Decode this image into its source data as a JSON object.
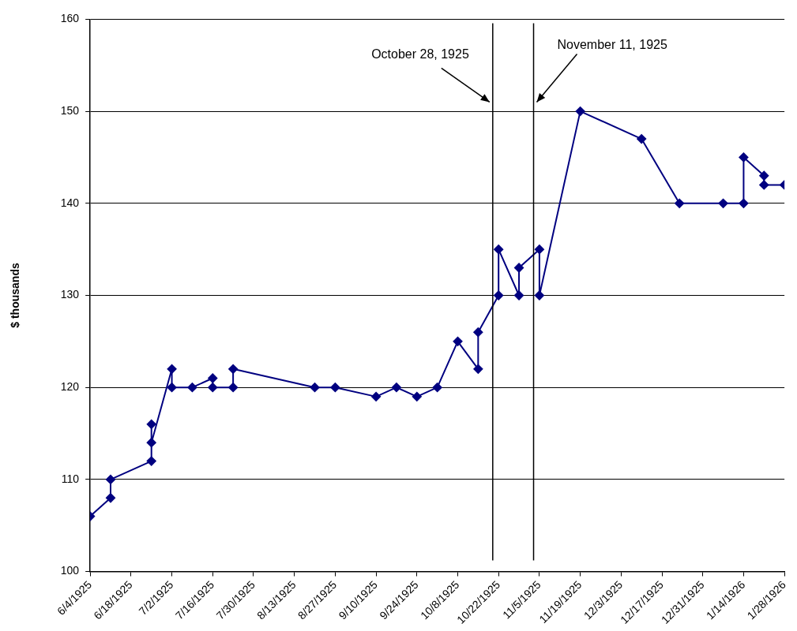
{
  "chart_data": {
    "type": "line",
    "ylabel": "$ thousands",
    "x": [
      "1925-06-04",
      "1925-06-11",
      "1925-06-11",
      "1925-06-25",
      "1925-06-25",
      "1925-06-25",
      "1925-07-02",
      "1925-07-02",
      "1925-07-09",
      "1925-07-16",
      "1925-07-16",
      "1925-07-23",
      "1925-07-23",
      "1925-08-20",
      "1925-08-27",
      "1925-09-10",
      "1925-09-17",
      "1925-09-24",
      "1925-10-01",
      "1925-10-08",
      "1925-10-15",
      "1925-10-15",
      "1925-10-22",
      "1925-10-22",
      "1925-10-29",
      "1925-10-29",
      "1925-11-05",
      "1925-11-05",
      "1925-11-19",
      "1925-12-10",
      "1925-12-23",
      "1926-01-07",
      "1926-01-14",
      "1926-01-14",
      "1926-01-21",
      "1926-01-21",
      "1926-01-28"
    ],
    "series": [
      {
        "color": "#000080",
        "values": [
          106,
          108,
          110,
          112,
          116,
          114,
          122,
          120,
          120,
          121,
          120,
          120,
          122,
          120,
          120,
          119,
          120,
          119,
          120,
          125,
          122,
          126,
          130,
          135,
          130,
          133,
          135,
          130,
          150,
          147,
          140,
          140,
          140,
          145,
          143,
          142,
          142
        ]
      }
    ],
    "xlim": [
      "1925-06-04",
      "1926-01-28"
    ],
    "xticks": [
      {
        "value": "1925-06-04",
        "label": "6/4/1925"
      },
      {
        "value": "1925-06-18",
        "label": "6/18/1925"
      },
      {
        "value": "1925-07-02",
        "label": "7/2/1925"
      },
      {
        "value": "1925-07-16",
        "label": "7/16/1925"
      },
      {
        "value": "1925-07-30",
        "label": "7/30/1925"
      },
      {
        "value": "1925-08-13",
        "label": "8/13/1925"
      },
      {
        "value": "1925-08-27",
        "label": "8/27/1925"
      },
      {
        "value": "1925-09-10",
        "label": "9/10/1925"
      },
      {
        "value": "1925-09-24",
        "label": "9/24/1925"
      },
      {
        "value": "1925-10-08",
        "label": "10/8/1925"
      },
      {
        "value": "1925-10-22",
        "label": "10/22/1925"
      },
      {
        "value": "1925-11-05",
        "label": "11/5/1925"
      },
      {
        "value": "1925-11-19",
        "label": "11/19/1925"
      },
      {
        "value": "1925-12-03",
        "label": "12/3/1925"
      },
      {
        "value": "1925-12-17",
        "label": "12/17/1925"
      },
      {
        "value": "1925-12-31",
        "label": "12/31/1925"
      },
      {
        "value": "1926-01-14",
        "label": "1/14/1926"
      },
      {
        "value": "1926-01-28",
        "label": "1/28/1926"
      }
    ],
    "ylim": [
      100,
      160
    ],
    "yticks": [
      100,
      110,
      120,
      130,
      140,
      150,
      160
    ],
    "grid": "y",
    "marker": "diamond",
    "line_style": "solid",
    "legend": false,
    "ref_lines": [
      {
        "axis": "x",
        "value": "1925-10-20",
        "label": "October 28, 1925",
        "color": "#000000"
      },
      {
        "axis": "x",
        "value": "1925-11-03",
        "label": "November 11, 1925",
        "color": "#000000"
      }
    ]
  }
}
